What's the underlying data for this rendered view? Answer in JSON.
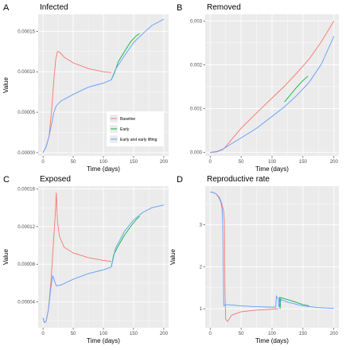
{
  "colors": {
    "panel_bg": "#ebebeb",
    "grid": "#ffffff",
    "baseline": "#f8766d",
    "early": "#00ba38",
    "early_lifting": "#619cff"
  },
  "legend": [
    "Baseline",
    "Early",
    "Early and early lifting"
  ],
  "chart_data": [
    {
      "type": "line",
      "letter": "A",
      "title": "Infected",
      "xlabel": "Time (days)",
      "ylabel": "Value",
      "xlim": [
        -8,
        208
      ],
      "ylim": [
        -4e-06,
        0.000171
      ],
      "xticks": [
        0,
        50,
        100,
        150,
        200
      ],
      "yticks": [
        0,
        5e-05,
        0.0001,
        0.00015
      ],
      "ytick_labels": [
        "0.00000",
        "0.00005",
        "0.00010",
        "0.00015"
      ],
      "legend": "inside-right",
      "series": [
        {
          "name": "Baseline",
          "points": [
            [
              0,
              0
            ],
            [
              5,
              7e-06
            ],
            [
              10,
              2e-05
            ],
            [
              14,
              5e-05
            ],
            [
              18,
              9e-05
            ],
            [
              21,
              0.000115
            ],
            [
              24,
              0.000125
            ],
            [
              28,
              0.000124
            ],
            [
              35,
              0.000118
            ],
            [
              50,
              0.000111
            ],
            [
              75,
              0.000104
            ],
            [
              100,
              0.0001
            ],
            [
              113,
              9.9e-05
            ]
          ]
        },
        {
          "name": "Early",
          "points": [
            [
              113,
              9e-05
            ],
            [
              118,
              9.8e-05
            ],
            [
              125,
              0.000113
            ],
            [
              135,
              0.000125
            ],
            [
              145,
              0.000137
            ],
            [
              155,
              0.000145
            ],
            [
              160,
              0.000147
            ]
          ]
        },
        {
          "name": "Early and early lifting",
          "points": [
            [
              0,
              0
            ],
            [
              5,
              7e-06
            ],
            [
              10,
              2e-05
            ],
            [
              14,
              3.5e-05
            ],
            [
              18,
              5e-05
            ],
            [
              22,
              5.8e-05
            ],
            [
              30,
              6.4e-05
            ],
            [
              50,
              7.2e-05
            ],
            [
              75,
              8.1e-05
            ],
            [
              100,
              8.6e-05
            ],
            [
              110,
              8.9e-05
            ],
            [
              113,
              9e-05
            ],
            [
              120,
              0.000103
            ],
            [
              135,
              0.00012
            ],
            [
              150,
              0.000136
            ],
            [
              165,
              0.000147
            ],
            [
              180,
              0.000157
            ],
            [
              200,
              0.000165
            ]
          ]
        }
      ]
    },
    {
      "type": "line",
      "letter": "B",
      "title": "Removed",
      "xlabel": "Time (days)",
      "ylabel": "",
      "xlim": [
        -8,
        208
      ],
      "ylim": [
        -8e-05,
        0.00315
      ],
      "xticks": [
        0,
        50,
        100,
        150,
        200
      ],
      "yticks": [
        0,
        0.001,
        0.002,
        0.003
      ],
      "ytick_labels": [
        "0.000",
        "0.001",
        "0.002",
        "0.003"
      ],
      "series": [
        {
          "name": "Baseline",
          "points": [
            [
              0,
              0
            ],
            [
              10,
              1e-05
            ],
            [
              20,
              6e-05
            ],
            [
              25,
              0.00013
            ],
            [
              35,
              0.0003
            ],
            [
              50,
              0.00055
            ],
            [
              75,
              0.0009
            ],
            [
              100,
              0.00124
            ],
            [
              120,
              0.00151
            ]
          ]
        },
        {
          "name": "Early",
          "points": [
            [
              120,
              0.00115
            ],
            [
              130,
              0.00132
            ],
            [
              140,
              0.00149
            ],
            [
              150,
              0.00164
            ],
            [
              158,
              0.00174
            ]
          ]
        },
        {
          "name": "Early and early lifting",
          "points": [
            [
              0,
              0
            ],
            [
              10,
              2e-05
            ],
            [
              20,
              7e-05
            ],
            [
              30,
              0.00016
            ],
            [
              50,
              0.00033
            ],
            [
              75,
              0.00055
            ],
            [
              100,
              0.00082
            ],
            [
              120,
              0.00104
            ],
            [
              140,
              0.0013
            ],
            [
              160,
              0.0016
            ],
            [
              180,
              0.00202
            ],
            [
              200,
              0.00265
            ]
          ]
        },
        {
          "name": "Baseline",
          "points": [
            [
              120,
              0.00151
            ],
            [
              140,
              0.00181
            ],
            [
              160,
              0.00213
            ],
            [
              180,
              0.00253
            ],
            [
              200,
              0.003
            ]
          ]
        }
      ]
    },
    {
      "type": "line",
      "letter": "C",
      "title": "Exposed",
      "xlabel": "Time (days)",
      "ylabel": "Value",
      "xlim": [
        -8,
        208
      ],
      "ylim": [
        1.25e-05,
        0.000163
      ],
      "xticks": [
        0,
        50,
        100,
        150,
        200
      ],
      "yticks": [
        4e-05,
        8e-05,
        0.00012,
        0.00016
      ],
      "ytick_labels": [
        "0.00004",
        "0.00008",
        "0.00012",
        "0.00016"
      ],
      "series": [
        {
          "name": "Baseline",
          "points": [
            [
              0,
              2.3e-05
            ],
            [
              2,
              1.8e-05
            ],
            [
              5,
              1.9e-05
            ],
            [
              9,
              3.2e-05
            ],
            [
              13,
              6e-05
            ],
            [
              17,
              0.0001
            ],
            [
              20,
              0.00013
            ],
            [
              22,
              0.000156
            ],
            [
              24,
              0.000125
            ],
            [
              27,
              0.00011
            ],
            [
              35,
              9.8e-05
            ],
            [
              50,
              9.2e-05
            ],
            [
              75,
              8.7e-05
            ],
            [
              100,
              8.4e-05
            ],
            [
              113,
              8.3e-05
            ]
          ]
        },
        {
          "name": "Early",
          "points": [
            [
              113,
              7.7e-05
            ],
            [
              117,
              9e-05
            ],
            [
              125,
              0.0001
            ],
            [
              135,
              0.000111
            ],
            [
              145,
              0.00012
            ],
            [
              155,
              0.000128
            ],
            [
              160,
              0.000131
            ]
          ]
        },
        {
          "name": "Early and early lifting",
          "points": [
            [
              0,
              2.3e-05
            ],
            [
              2,
              1.8e-05
            ],
            [
              5,
              1.9e-05
            ],
            [
              9,
              3.2e-05
            ],
            [
              13,
              5.5e-05
            ],
            [
              16,
              6.8e-05
            ],
            [
              18,
              6.4e-05
            ],
            [
              22,
              5.7e-05
            ],
            [
              30,
              5.8e-05
            ],
            [
              50,
              6.4e-05
            ],
            [
              75,
              7e-05
            ],
            [
              100,
              7.4e-05
            ],
            [
              113,
              7.7e-05
            ],
            [
              120,
              9.7e-05
            ],
            [
              135,
              0.000115
            ],
            [
              150,
              0.000127
            ],
            [
              165,
              0.000135
            ],
            [
              180,
              0.00014
            ],
            [
              200,
              0.000143
            ]
          ]
        }
      ]
    },
    {
      "type": "line",
      "letter": "D",
      "title": "Reproductive rate",
      "xlabel": "Time (days)",
      "ylabel": "Value",
      "xlim": [
        -8,
        208
      ],
      "ylim": [
        0.55,
        3.92
      ],
      "xticks": [
        0,
        50,
        100,
        150,
        200
      ],
      "yticks": [
        1,
        2,
        3
      ],
      "ytick_labels": [
        "1",
        "2",
        "3"
      ],
      "series": [
        {
          "name": "Baseline",
          "points": [
            [
              0,
              3.78
            ],
            [
              5,
              3.77
            ],
            [
              10,
              3.73
            ],
            [
              15,
              3.65
            ],
            [
              19,
              3.5
            ],
            [
              22,
              3.3
            ],
            [
              23,
              3.1
            ],
            [
              24,
              1.5
            ],
            [
              25,
              0.75
            ],
            [
              28,
              0.7
            ],
            [
              35,
              0.85
            ],
            [
              50,
              0.93
            ],
            [
              75,
              0.97
            ],
            [
              100,
              0.99
            ],
            [
              110,
              1.0
            ]
          ]
        },
        {
          "name": "Early",
          "points": [
            [
              112,
              1.28
            ],
            [
              113,
              1.0
            ],
            [
              114,
              1.27
            ],
            [
              120,
              1.24
            ],
            [
              130,
              1.2
            ],
            [
              140,
              1.15
            ],
            [
              150,
              1.1
            ],
            [
              160,
              1.07
            ]
          ]
        },
        {
          "name": "Early and early lifting",
          "points": [
            [
              0,
              3.78
            ],
            [
              5,
              3.77
            ],
            [
              10,
              3.73
            ],
            [
              14,
              3.65
            ],
            [
              17,
              3.55
            ],
            [
              19,
              3.4
            ],
            [
              20,
              3.2
            ],
            [
              21,
              2.2
            ],
            [
              22,
              1.07
            ],
            [
              25,
              1.1
            ],
            [
              35,
              1.09
            ],
            [
              50,
              1.07
            ],
            [
              75,
              1.05
            ],
            [
              100,
              1.04
            ],
            [
              106,
              1.04
            ],
            [
              107,
              1.3
            ],
            [
              108,
              1.27
            ],
            [
              110,
              1.25
            ],
            [
              111,
              1.05
            ],
            [
              115,
              1.22
            ],
            [
              125,
              1.16
            ],
            [
              150,
              1.07
            ],
            [
              175,
              1.03
            ],
            [
              200,
              1.01
            ]
          ]
        }
      ]
    }
  ]
}
